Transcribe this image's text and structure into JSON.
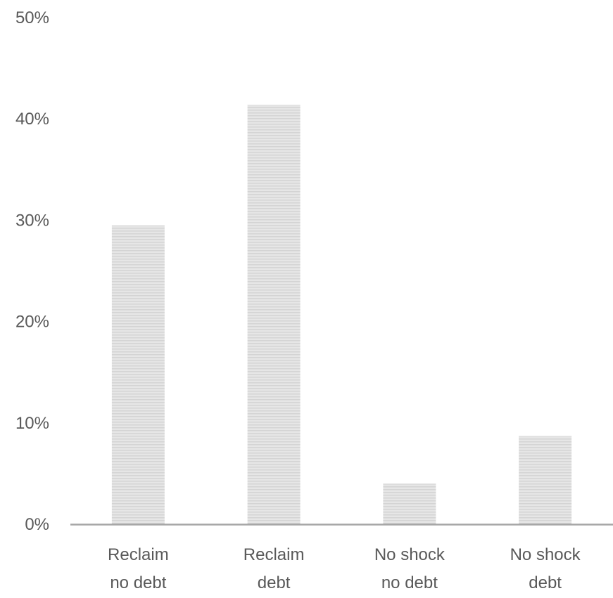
{
  "chart_data": {
    "type": "bar",
    "title": "",
    "xlabel": "",
    "ylabel": "",
    "categories": [
      [
        "Reclaim",
        "no debt"
      ],
      [
        "Reclaim",
        "debt"
      ],
      [
        "No shock",
        "no debt"
      ],
      [
        "No shock",
        "debt"
      ]
    ],
    "values": [
      29.5,
      41.4,
      4.0,
      8.7
    ],
    "ylim": [
      0,
      50
    ],
    "yticks": [
      0,
      10,
      20,
      30,
      40,
      50
    ],
    "ytick_labels": [
      "0%",
      "10%",
      "20%",
      "30%",
      "40%",
      "50%"
    ],
    "grid": false,
    "legend": "none",
    "colors": {
      "bar_fill": "#e6e6e6",
      "bar_stripe": "#d4d4d4",
      "axis_line": "#a6a6a6",
      "label_text": "#595959"
    }
  }
}
